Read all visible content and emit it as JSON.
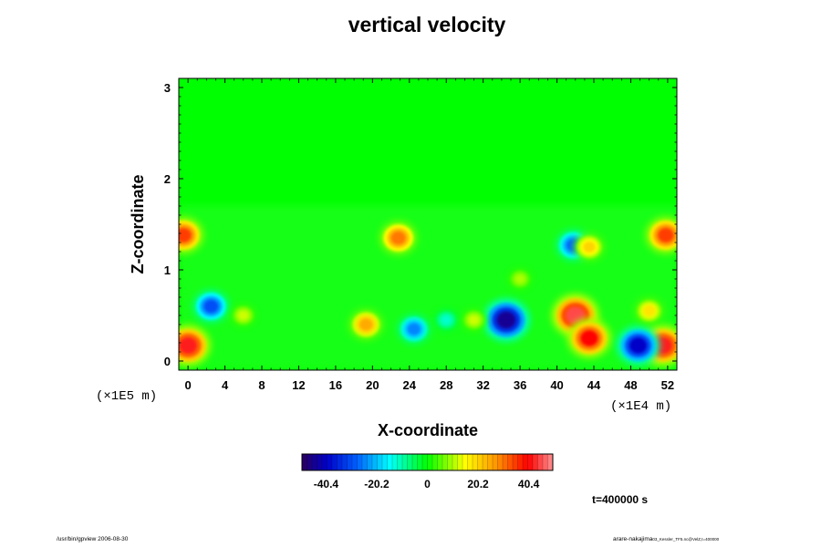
{
  "chart_data": {
    "type": "heatmap",
    "title": "vertical velocity",
    "xlabel": "X-coordinate",
    "ylabel": "Z-coordinate",
    "x_ticks": [
      "0",
      "4",
      "8",
      "12",
      "16",
      "20",
      "24",
      "28",
      "32",
      "36",
      "40",
      "44",
      "48",
      "52"
    ],
    "y_ticks": [
      "0",
      "1",
      "2",
      "3"
    ],
    "x_scale_label": "(×1E4 m)",
    "y_scale_label": "(×1E5 m)",
    "xlim": [
      -1,
      53
    ],
    "ylim": [
      -0.1,
      3.1
    ],
    "colorbar": {
      "ticks": [
        "-40.4",
        "-20.2",
        "0",
        "20.2",
        "40.4"
      ],
      "range": [
        -50,
        50
      ]
    },
    "features": [
      {
        "x": 42,
        "z": 0.5,
        "value": 45
      },
      {
        "x": 43.5,
        "z": 0.25,
        "value": 40
      },
      {
        "x": 34.5,
        "z": 0.45,
        "value": -45
      },
      {
        "x": 0,
        "z": 0.17,
        "value": 42
      },
      {
        "x": 51.5,
        "z": 0.17,
        "value": 42
      },
      {
        "x": -0.5,
        "z": 1.38,
        "value": 35
      },
      {
        "x": 51.8,
        "z": 1.38,
        "value": 35
      },
      {
        "x": 2.5,
        "z": 0.6,
        "value": -30
      },
      {
        "x": 48.8,
        "z": 0.17,
        "value": -40
      },
      {
        "x": 24.5,
        "z": 0.35,
        "value": -25
      },
      {
        "x": 19.3,
        "z": 0.4,
        "value": 25
      },
      {
        "x": 22.8,
        "z": 1.35,
        "value": 30
      },
      {
        "x": 41.8,
        "z": 1.27,
        "value": -28
      },
      {
        "x": 43.5,
        "z": 1.25,
        "value": 20
      },
      {
        "x": 50,
        "z": 0.55,
        "value": 18
      },
      {
        "x": 6,
        "z": 0.5,
        "value": 12
      },
      {
        "x": 36,
        "z": 0.9,
        "value": 10
      },
      {
        "x": 28,
        "z": 0.45,
        "value": -12
      },
      {
        "x": 31,
        "z": 0.45,
        "value": 12
      }
    ]
  },
  "time_label": "t=400000 s",
  "footer_left": "/usr/bin/gpview 2006-08-30",
  "footer_right_main": "arare-nakajima",
  "footer_right_sub": "03_Kessler_TF5.nc@VelZ,t=400000"
}
